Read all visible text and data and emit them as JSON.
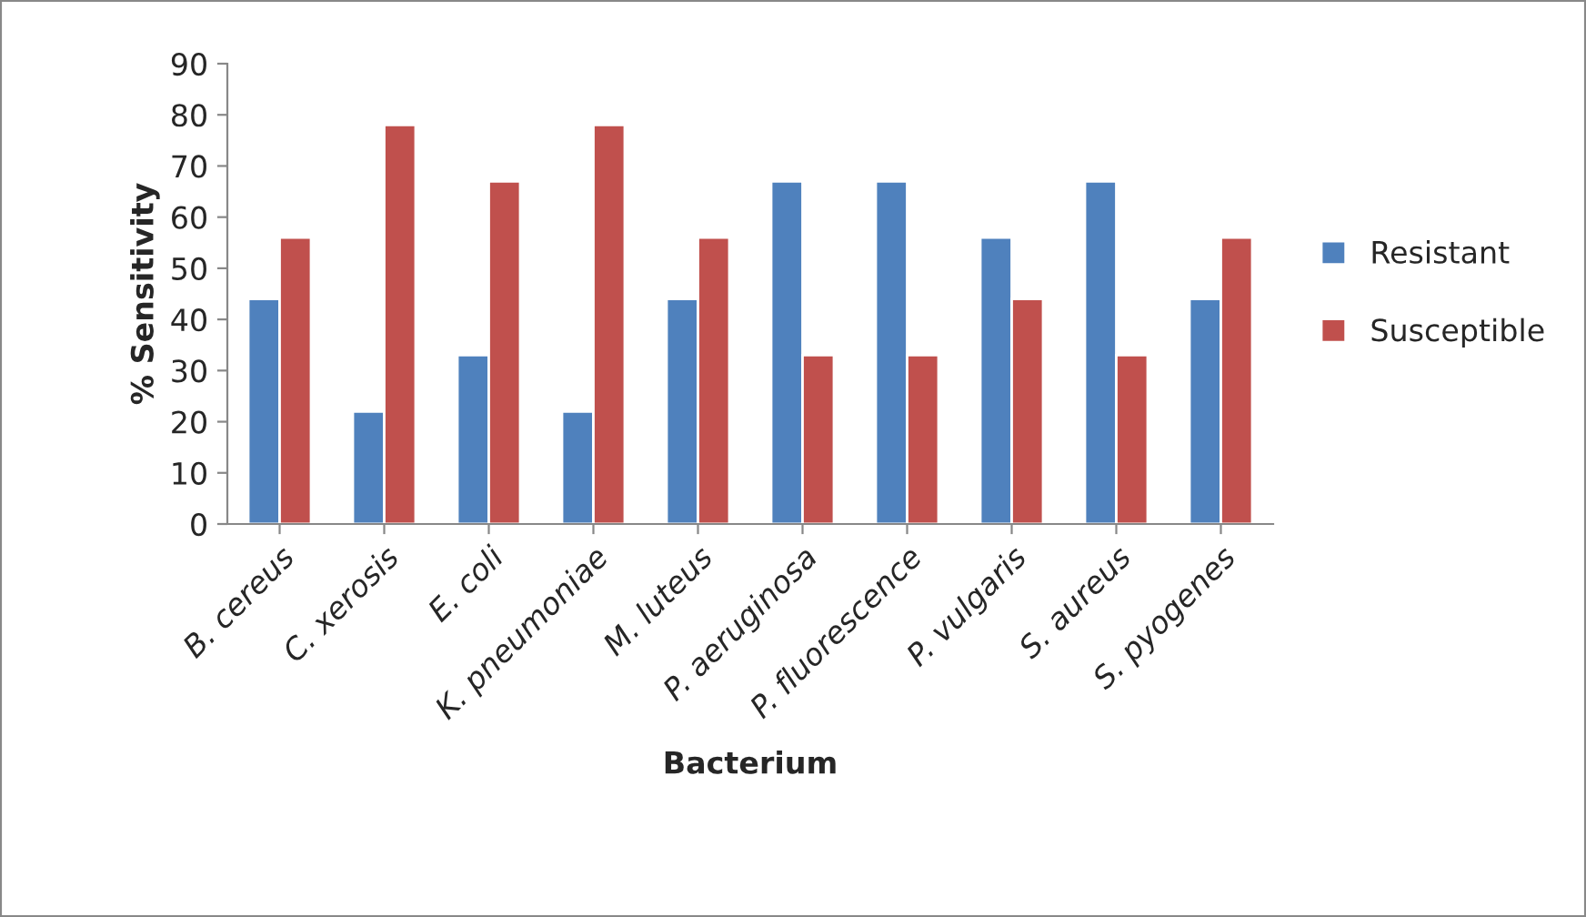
{
  "chart_data": {
    "type": "bar",
    "xlabel": "Bacterium",
    "ylabel": "% Sensitivity",
    "categories": [
      "B. cereus",
      "C. xerosis",
      "E. coli",
      "K. pneumoniae",
      "M. luteus",
      "P. aeruginosa",
      "P. fluorescence",
      "P. vulgaris",
      "S. aureus",
      "S. pyogenes"
    ],
    "series": [
      {
        "name": "Resistant",
        "color": "#4f81bd",
        "values": [
          44,
          22,
          33,
          22,
          44,
          67,
          67,
          56,
          67,
          44
        ]
      },
      {
        "name": "Susceptible",
        "color": "#c0504d",
        "values": [
          56,
          78,
          67,
          78,
          56,
          33,
          33,
          44,
          33,
          56
        ]
      }
    ],
    "ylim": [
      0,
      90
    ],
    "yticks": [
      0,
      10,
      20,
      30,
      40,
      50,
      60,
      70,
      80,
      90
    ],
    "grid": false,
    "legend": "right"
  }
}
